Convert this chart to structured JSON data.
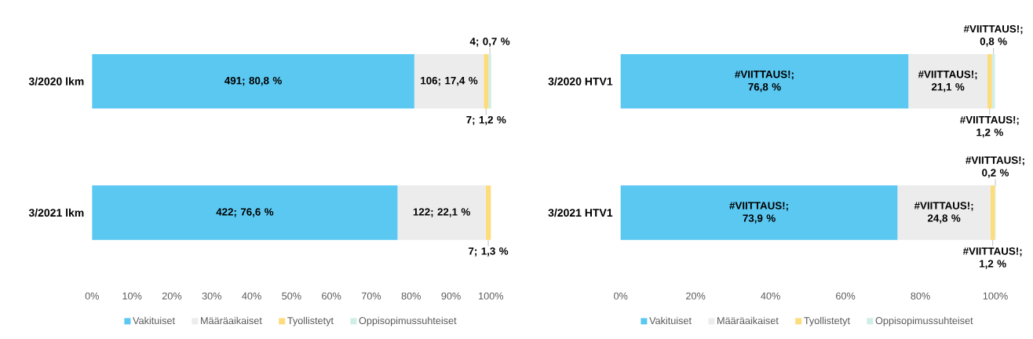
{
  "chart_data": [
    {
      "type": "bar",
      "orientation": "horizontal",
      "stacked": true,
      "categories": [
        "3/2020 lkm",
        "3/2021 lkm"
      ],
      "xlim": [
        0,
        100
      ],
      "xticks": [
        {
          "value": 0,
          "label": "0%"
        },
        {
          "value": 10,
          "label": "10%"
        },
        {
          "value": 20,
          "label": "20%"
        },
        {
          "value": 30,
          "label": "30%"
        },
        {
          "value": 40,
          "label": "40%"
        },
        {
          "value": 50,
          "label": "50%"
        },
        {
          "value": 60,
          "label": "60%"
        },
        {
          "value": 70,
          "label": "70%"
        },
        {
          "value": 80,
          "label": "80%"
        },
        {
          "value": 90,
          "label": "90%"
        },
        {
          "value": 100,
          "label": "100%"
        }
      ],
      "legend": "bottom",
      "series": [
        {
          "name": "Vakituiset",
          "color": "#5bc8f2",
          "values": [
            80.8,
            76.6
          ],
          "value_labels": [
            "491; 80,8 %",
            "422; 76,6 %"
          ]
        },
        {
          "name": "Määräaikaiset",
          "color": "#ececec",
          "values": [
            17.4,
            22.1
          ],
          "value_labels": [
            "106; 17,4 %",
            "122; 22,1 %"
          ]
        },
        {
          "name": "Tyollistetyt",
          "color": "#fcdc7c",
          "values": [
            1.2,
            1.3
          ],
          "value_labels": [
            "7; 1,2 %",
            "7; 1,3 %"
          ]
        },
        {
          "name": "Oppisopimussuhteiset",
          "color": "#cfeee8",
          "values": [
            0.7,
            0
          ],
          "value_labels": [
            "4; 0,7 %",
            null
          ]
        }
      ]
    },
    {
      "type": "bar",
      "orientation": "horizontal",
      "stacked": true,
      "categories": [
        "3/2020 HTV1",
        "3/2021 HTV1"
      ],
      "xlim": [
        0,
        100
      ],
      "xticks": [
        {
          "value": 0,
          "label": "0%"
        },
        {
          "value": 20,
          "label": "20%"
        },
        {
          "value": 40,
          "label": "40%"
        },
        {
          "value": 60,
          "label": "60%"
        },
        {
          "value": 80,
          "label": "80%"
        },
        {
          "value": 100,
          "label": "100%"
        }
      ],
      "legend": "bottom",
      "series": [
        {
          "name": "Vakituiset",
          "color": "#5bc8f2",
          "values": [
            76.8,
            73.9
          ],
          "value_labels": [
            "#VIITTAUS!; 76,8 %",
            "#VIITTAUS!; 73,9 %"
          ]
        },
        {
          "name": "Määräaikaiset",
          "color": "#ececec",
          "values": [
            21.1,
            24.8
          ],
          "value_labels": [
            "#VIITTAUS!; 21,1 %",
            "#VIITTAUS!; 24,8 %"
          ]
        },
        {
          "name": "Tyollistetyt",
          "color": "#fcdc7c",
          "values": [
            1.2,
            1.2
          ],
          "value_labels": [
            "#VIITTAUS!; 1,2 %",
            "#VIITTAUS!; 1,2 %"
          ]
        },
        {
          "name": "Oppisopimussuhteiset",
          "color": "#cfeee8",
          "values": [
            0.8,
            0.2
          ],
          "value_labels": [
            "#VIITTAUS!; 0,8 %",
            "#VIITTAUS!; 0,2 %"
          ]
        }
      ]
    }
  ]
}
